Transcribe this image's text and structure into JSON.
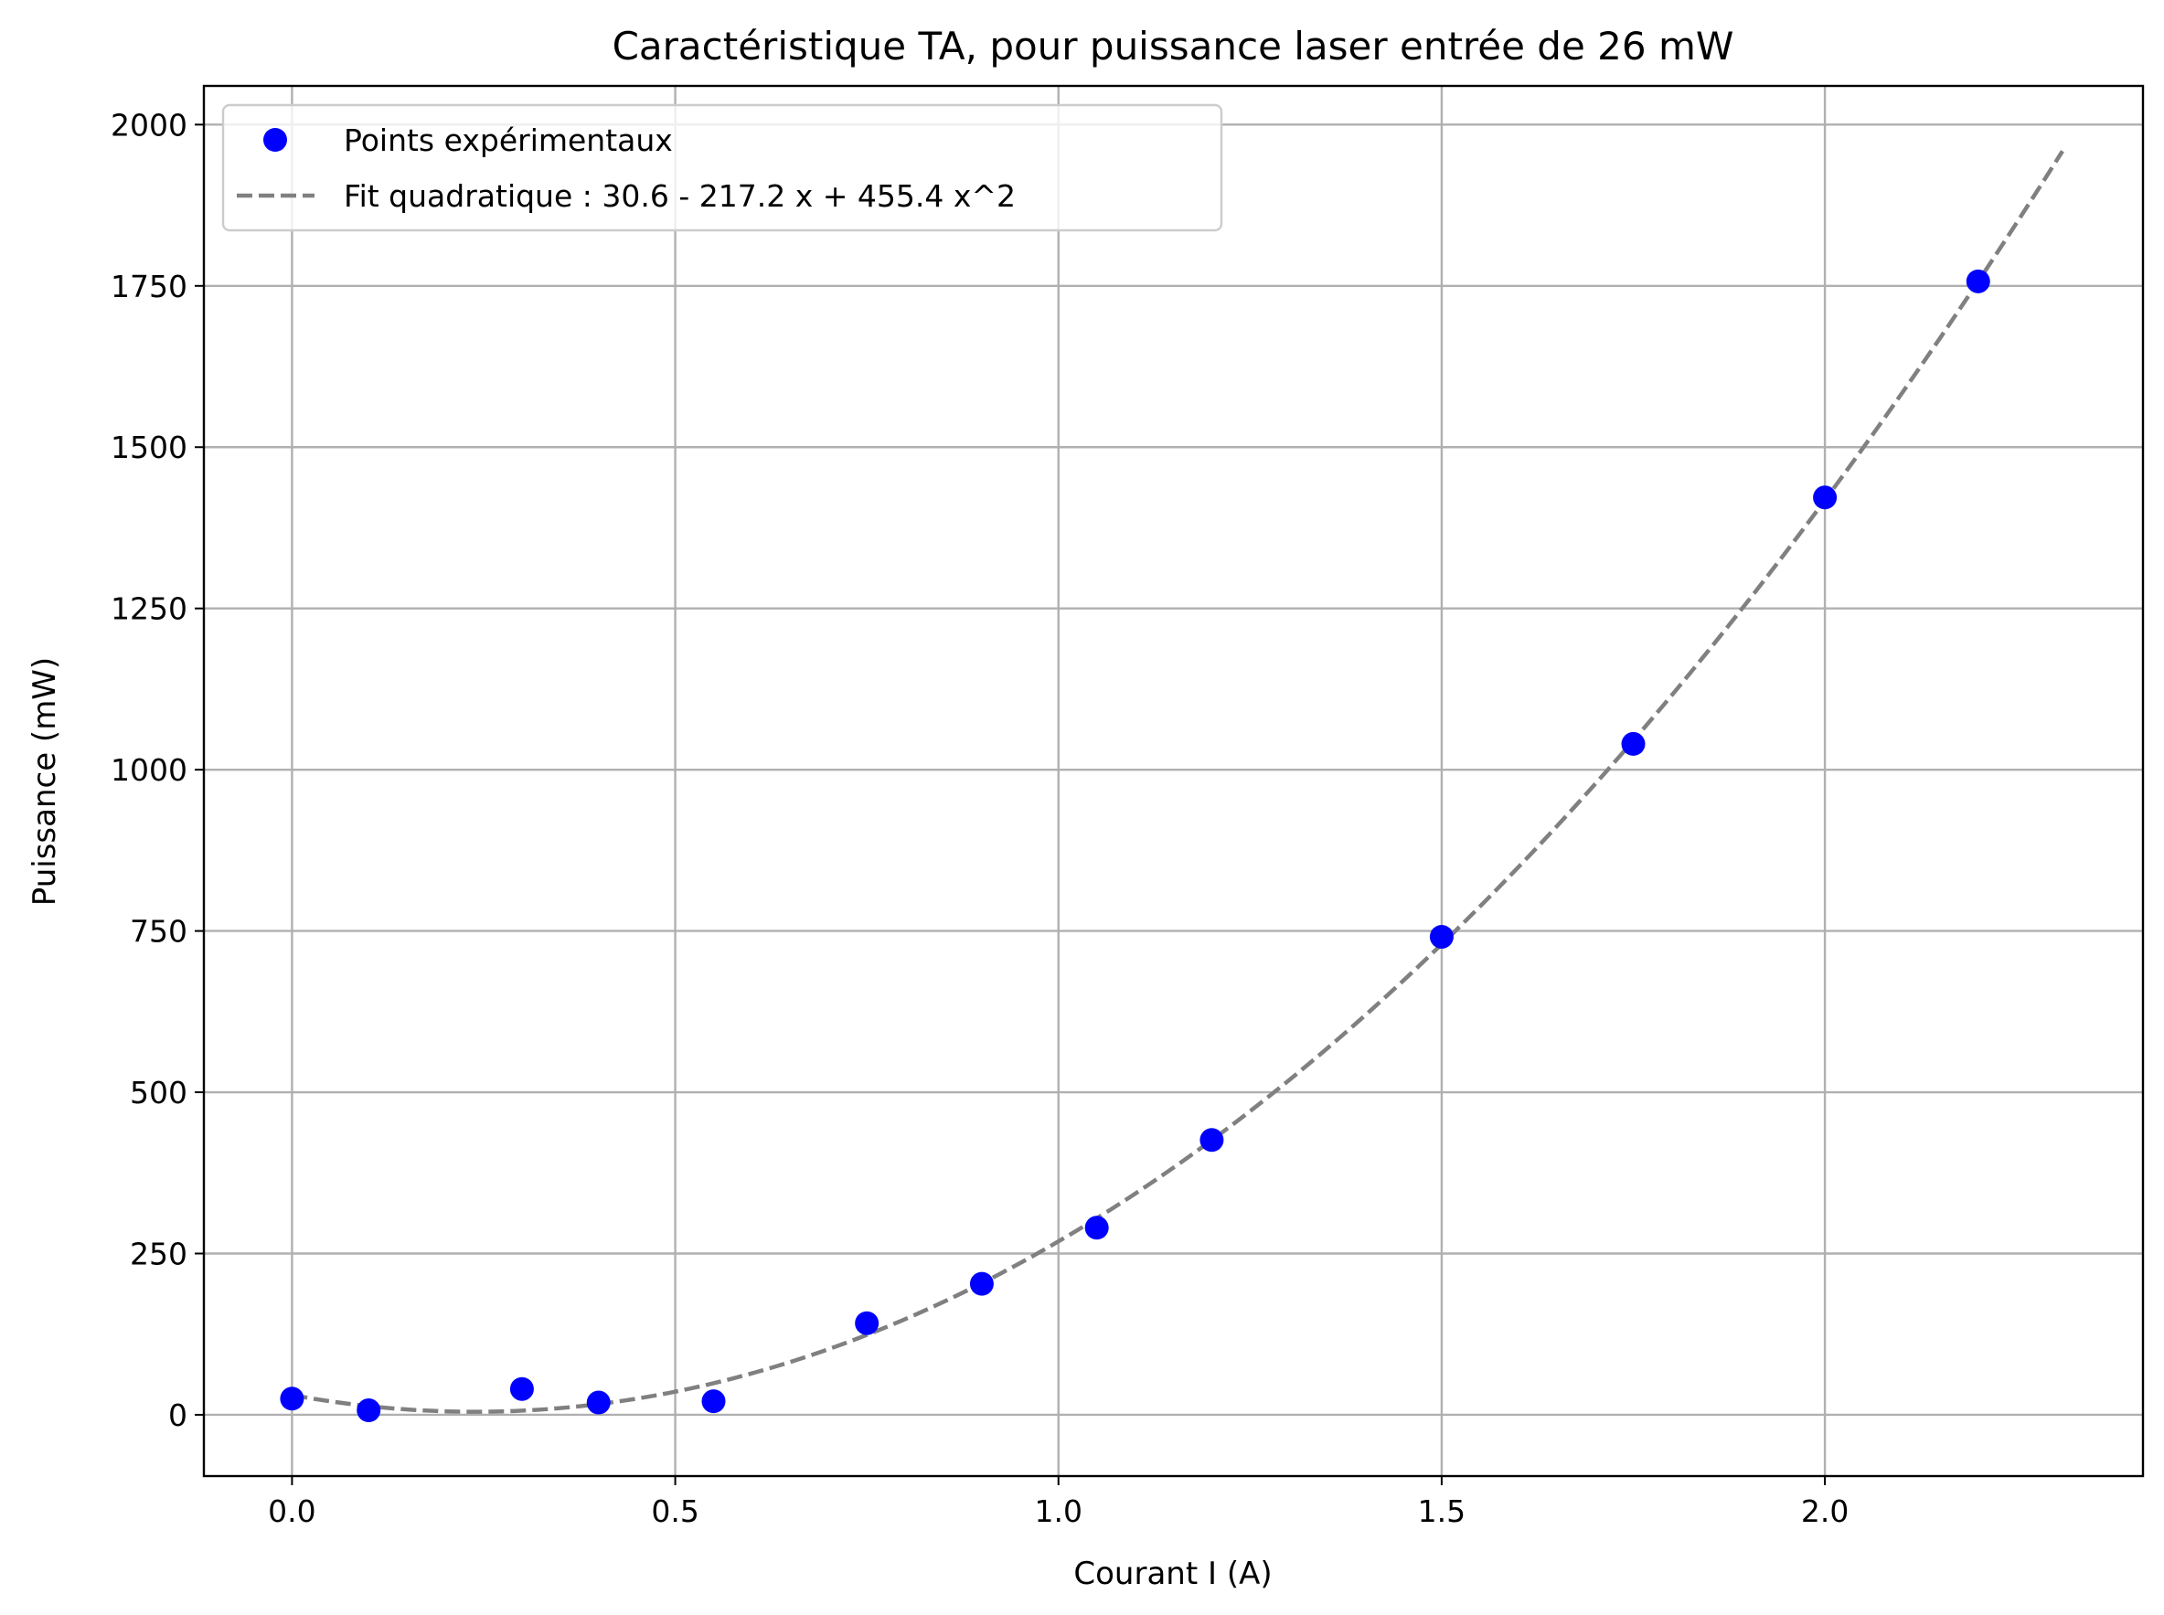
{
  "chart_data": {
    "type": "scatter",
    "title": "Caractéristique TA, pour puissance laser entrée de 26 mW",
    "xlabel": "Courant I (A)",
    "ylabel": "Puissance (mW)",
    "xlim": [
      -0.115,
      2.415
    ],
    "ylim": [
      -95,
      2060
    ],
    "x_ticks": [
      0.0,
      0.5,
      1.0,
      1.5,
      2.0
    ],
    "x_tick_labels": [
      "0.0",
      "0.5",
      "1.0",
      "1.5",
      "2.0"
    ],
    "y_ticks": [
      0,
      250,
      500,
      750,
      1000,
      1250,
      1500,
      1750,
      2000
    ],
    "y_tick_labels": [
      "0",
      "250",
      "500",
      "750",
      "1000",
      "1250",
      "1500",
      "1750",
      "2000"
    ],
    "grid": true,
    "legend_position": "top-left",
    "series": [
      {
        "name": "Points expérimentaux",
        "kind": "scatter",
        "color": "#0000ff",
        "x": [
          0.0,
          0.1,
          0.3,
          0.4,
          0.55,
          0.75,
          0.9,
          1.05,
          1.2,
          1.5,
          1.75,
          2.0,
          2.2
        ],
        "y": [
          25,
          7,
          40,
          19,
          21,
          142,
          203,
          290,
          426,
          741,
          1040,
          1422,
          1757
        ]
      },
      {
        "name": "Fit quadratique : 30.6 - 217.2  x + 455.4 x^2",
        "kind": "line",
        "style": "dashed",
        "color": "#808080",
        "coefficients": [
          30.6,
          -217.2,
          455.4
        ],
        "x_range": [
          0.0,
          2.31
        ]
      }
    ]
  }
}
